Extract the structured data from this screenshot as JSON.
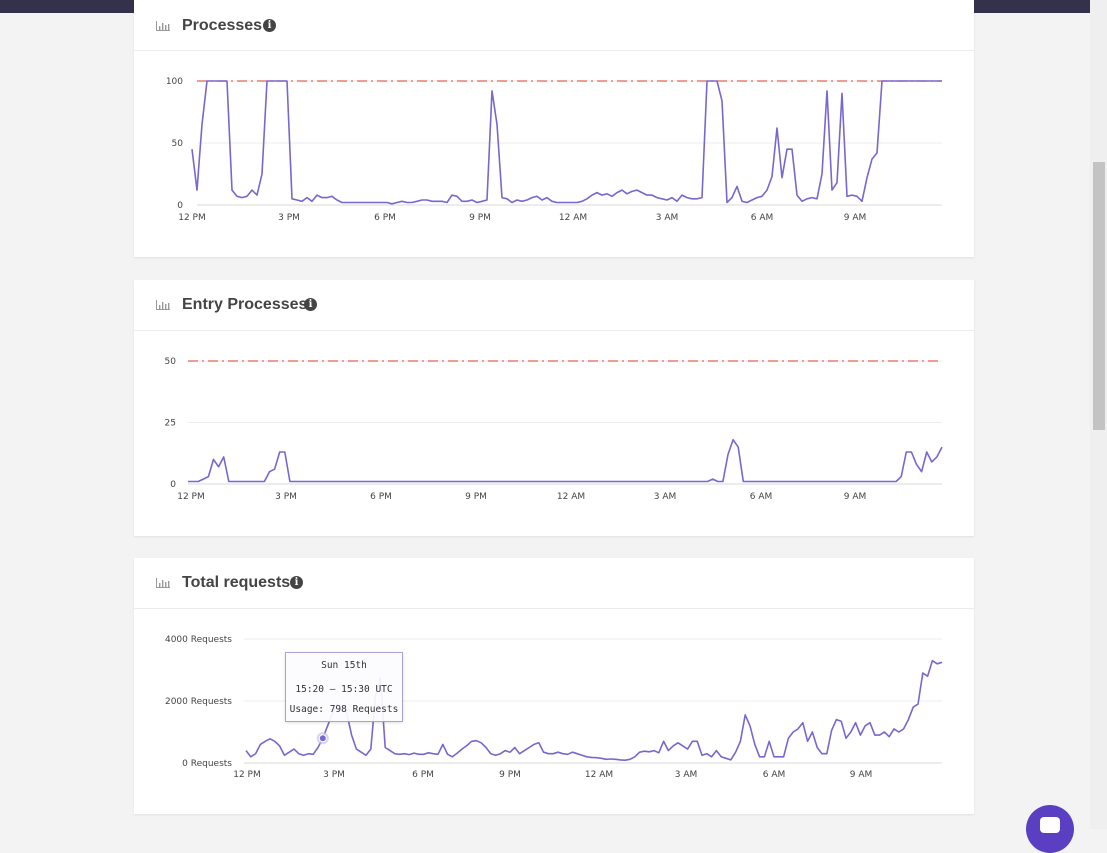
{
  "colors": {
    "line": "#7a66d0",
    "limit": "#e8614f",
    "limitAlt": "#8f86c9",
    "grid": "#ededed",
    "topbar": "#34314d",
    "chat": "#5b3fc2"
  },
  "icons": {
    "chart": "bar-chart-icon",
    "info": "info-icon",
    "chat": "chat-icon"
  },
  "cards": [
    {
      "title": "Processes",
      "info": "i"
    },
    {
      "title": "Entry Processes",
      "info": "i"
    },
    {
      "title": "Total requests",
      "info": "i"
    }
  ],
  "tooltip": {
    "date": "Sun 15th",
    "range": "15:20 – 15:30 UTC",
    "usage": "Usage: 798 Requests"
  },
  "chart_data": [
    {
      "type": "line",
      "title": "Processes",
      "x_ticks": [
        "12 PM",
        "3 PM",
        "6 PM",
        "9 PM",
        "12 AM",
        "3 AM",
        "6 AM",
        "9 AM"
      ],
      "y_ticks": [
        "100",
        "50",
        "0"
      ],
      "ylim": [
        0,
        100
      ],
      "limit": 100,
      "grid": true,
      "values": [
        45,
        12,
        65,
        100,
        100,
        100,
        100,
        100,
        12,
        7,
        6,
        7,
        12,
        8,
        25,
        100,
        100,
        100,
        100,
        100,
        5,
        4,
        3,
        6,
        3,
        8,
        6,
        6,
        7,
        4,
        2,
        2,
        2,
        2,
        2,
        2,
        2,
        2,
        2,
        2,
        1,
        2,
        3,
        2,
        2,
        3,
        4,
        4,
        3,
        3,
        3,
        2,
        8,
        7,
        3,
        3,
        4,
        2,
        3,
        4,
        92,
        65,
        6,
        5,
        2,
        4,
        3,
        4,
        6,
        7,
        4,
        6,
        3,
        2,
        2,
        2,
        2,
        2,
        3,
        5,
        8,
        10,
        8,
        9,
        7,
        10,
        12,
        9,
        11,
        12,
        10,
        8,
        8,
        6,
        5,
        4,
        6,
        3,
        8,
        6,
        5,
        5,
        6,
        100,
        100,
        100,
        84,
        2,
        6,
        15,
        3,
        2,
        4,
        6,
        7,
        12,
        23,
        62,
        22,
        45,
        45,
        8,
        3,
        5,
        6,
        5,
        25,
        92,
        12,
        18,
        90,
        7,
        8,
        7,
        3,
        22,
        37,
        42,
        100,
        100,
        100,
        100,
        100,
        100,
        100,
        100,
        100,
        100,
        100,
        100,
        100
      ]
    },
    {
      "type": "line",
      "title": "Entry Processes",
      "x_ticks": [
        "12 PM",
        "3 PM",
        "6 PM",
        "9 PM",
        "12 AM",
        "3 AM",
        "6 AM",
        "9 AM"
      ],
      "y_ticks": [
        "50",
        "25",
        "0"
      ],
      "ylim": [
        0,
        50
      ],
      "limit": 50,
      "grid": true,
      "values": [
        1,
        1,
        1,
        2,
        3,
        10,
        7,
        11,
        1,
        1,
        1,
        1,
        1,
        1,
        1,
        1,
        5,
        6,
        13,
        13,
        1,
        1,
        1,
        1,
        1,
        1,
        1,
        1,
        1,
        1,
        1,
        1,
        1,
        1,
        1,
        1,
        1,
        1,
        1,
        1,
        1,
        1,
        1,
        1,
        1,
        1,
        1,
        1,
        1,
        1,
        1,
        1,
        1,
        1,
        1,
        1,
        1,
        1,
        1,
        1,
        1,
        1,
        1,
        1,
        1,
        1,
        1,
        1,
        1,
        1,
        1,
        1,
        1,
        1,
        1,
        1,
        1,
        1,
        1,
        1,
        1,
        1,
        1,
        1,
        1,
        1,
        1,
        1,
        1,
        1,
        1,
        1,
        1,
        1,
        1,
        1,
        1,
        1,
        1,
        1,
        1,
        1,
        1,
        2,
        1,
        1,
        12,
        18,
        15,
        1,
        1,
        1,
        1,
        1,
        1,
        1,
        1,
        1,
        1,
        1,
        1,
        1,
        1,
        1,
        1,
        1,
        1,
        1,
        1,
        1,
        1,
        1,
        1,
        1,
        1,
        1,
        1,
        1,
        1,
        1,
        3,
        13,
        13,
        8,
        5,
        13,
        9,
        11,
        15
      ]
    },
    {
      "type": "line",
      "title": "Total requests",
      "x_ticks": [
        "12 PM",
        "3 PM",
        "6 PM",
        "9 PM",
        "12 AM",
        "3 AM",
        "6 AM",
        "9 AM"
      ],
      "y_ticks": [
        "4000 Requests",
        "2000 Requests",
        "0 Requests"
      ],
      "ylim": [
        0,
        4000
      ],
      "grid": true,
      "tooltip_index": 16,
      "values": [
        400,
        200,
        300,
        600,
        700,
        780,
        700,
        550,
        250,
        350,
        450,
        300,
        250,
        300,
        280,
        500,
        798,
        1200,
        1600,
        1900,
        1800,
        1600,
        900,
        450,
        350,
        250,
        450,
        2200,
        2750,
        500,
        400,
        300,
        280,
        300,
        270,
        320,
        280,
        280,
        330,
        300,
        280,
        600,
        280,
        200,
        320,
        450,
        560,
        700,
        720,
        650,
        500,
        300,
        250,
        300,
        400,
        350,
        500,
        300,
        400,
        500,
        600,
        650,
        350,
        300,
        300,
        350,
        300,
        280,
        350,
        300,
        250,
        200,
        180,
        170,
        150,
        120,
        130,
        120,
        100,
        90,
        120,
        200,
        350,
        380,
        360,
        400,
        330,
        700,
        400,
        550,
        650,
        550,
        450,
        700,
        700,
        250,
        300,
        200,
        400,
        200,
        150,
        100,
        350,
        700,
        1550,
        1200,
        600,
        200,
        200,
        700,
        200,
        200,
        200,
        800,
        1000,
        1100,
        1300,
        700,
        1000,
        500,
        300,
        300,
        1050,
        1400,
        1350,
        800,
        1000,
        1300,
        900,
        1200,
        1300,
        900,
        900,
        1000,
        850,
        1100,
        1000,
        1100,
        1400,
        1800,
        1900,
        2900,
        2800,
        3300,
        3200,
        3250
      ]
    }
  ]
}
